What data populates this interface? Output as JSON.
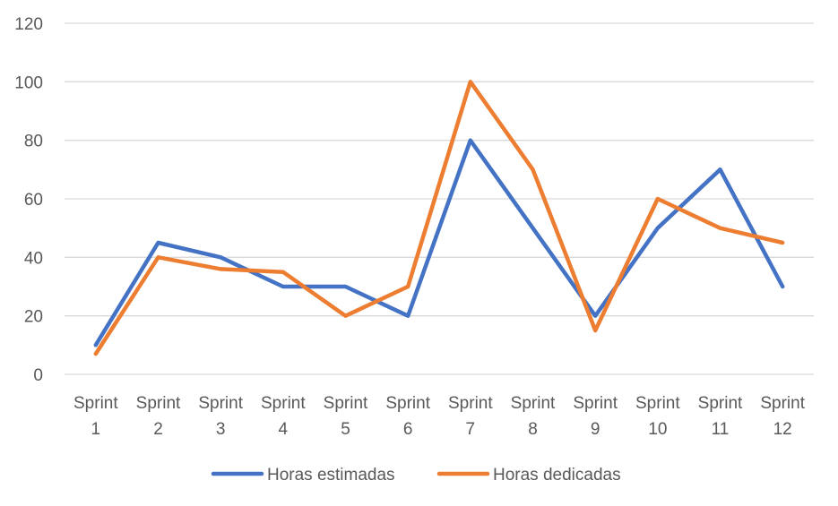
{
  "chart_data": {
    "type": "line",
    "categories": [
      [
        "Sprint",
        "1"
      ],
      [
        "Sprint",
        "2"
      ],
      [
        "Sprint",
        "3"
      ],
      [
        "Sprint",
        "4"
      ],
      [
        "Sprint",
        "5"
      ],
      [
        "Sprint",
        "6"
      ],
      [
        "Sprint",
        "7"
      ],
      [
        "Sprint",
        "8"
      ],
      [
        "Sprint",
        "9"
      ],
      [
        "Sprint",
        "10"
      ],
      [
        "Sprint",
        "11"
      ],
      [
        "Sprint",
        "12"
      ]
    ],
    "series": [
      {
        "name": "Horas estimadas",
        "color": "#4472C4",
        "values": [
          10,
          45,
          40,
          30,
          30,
          20,
          80,
          50,
          20,
          50,
          70,
          30
        ]
      },
      {
        "name": "Horas dedicadas",
        "color": "#ED7D31",
        "values": [
          7,
          40,
          36,
          35,
          20,
          30,
          100,
          70,
          15,
          60,
          50,
          45
        ]
      }
    ],
    "y_ticks": [
      "0",
      "20",
      "40",
      "60",
      "80",
      "100",
      "120"
    ],
    "ylim": [
      0,
      120
    ],
    "grid": true,
    "legend_position": "bottom",
    "gridline_color": "#D9D9D9"
  }
}
